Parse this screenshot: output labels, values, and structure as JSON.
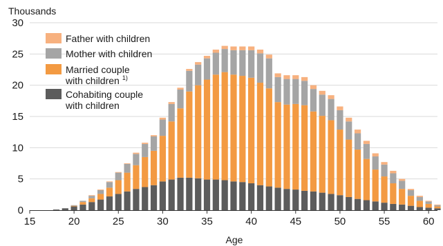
{
  "chart_data": {
    "type": "bar",
    "stacked": true,
    "ylabel": "Thousands",
    "xlabel": "Age",
    "ylim": [
      0,
      30
    ],
    "yticks": [
      0,
      5,
      10,
      15,
      20,
      25,
      30
    ],
    "xlim": [
      15,
      61
    ],
    "xticks": [
      15,
      20,
      25,
      30,
      35,
      40,
      45,
      50,
      55,
      60
    ],
    "grid": true,
    "legend_position": "top-left",
    "x": [
      15,
      16,
      17,
      18,
      19,
      20,
      21,
      22,
      23,
      24,
      25,
      26,
      27,
      28,
      29,
      30,
      31,
      32,
      33,
      34,
      35,
      36,
      37,
      38,
      39,
      40,
      41,
      42,
      43,
      44,
      45,
      46,
      47,
      48,
      49,
      50,
      51,
      52,
      53,
      54,
      55,
      56,
      57,
      58,
      59,
      60,
      61
    ],
    "series": [
      {
        "name": "Cohabiting couple with children",
        "color": "#5c5c5c",
        "values": [
          0,
          0,
          0,
          0.1,
          0.3,
          0.6,
          0.9,
          1.3,
          1.7,
          2.2,
          2.6,
          3.0,
          3.4,
          3.7,
          4.0,
          4.6,
          4.9,
          5.2,
          5.2,
          5.1,
          4.9,
          4.9,
          4.8,
          4.6,
          4.5,
          4.3,
          4.0,
          3.8,
          3.6,
          3.4,
          3.3,
          3.1,
          3.0,
          2.8,
          2.6,
          2.4,
          2.1,
          1.8,
          1.6,
          1.4,
          1.2,
          1.0,
          0.9,
          0.7,
          0.5,
          0.4,
          0.3
        ]
      },
      {
        "name": "Married couple with children",
        "sup": "1)",
        "color": "#f39a42",
        "values": [
          0,
          0,
          0,
          0,
          0,
          0.1,
          0.4,
          0.6,
          0.9,
          1.4,
          2.2,
          3.0,
          3.8,
          4.8,
          5.5,
          7.3,
          9.3,
          11.1,
          13.8,
          14.9,
          16.0,
          16.8,
          17.3,
          17.1,
          17.0,
          16.9,
          16.4,
          15.7,
          13.7,
          13.5,
          13.7,
          13.7,
          12.8,
          12.3,
          11.8,
          10.5,
          9.2,
          7.9,
          6.6,
          5.1,
          4.2,
          3.3,
          2.5,
          1.6,
          1.0,
          0.6,
          0.3
        ]
      },
      {
        "name": "Mother with children",
        "color": "#a5a5a5",
        "values": [
          0,
          0,
          0,
          0,
          0,
          0.1,
          0.2,
          0.4,
          0.6,
          0.9,
          1.2,
          1.4,
          1.8,
          2.1,
          2.3,
          2.6,
          2.8,
          3.0,
          3.3,
          3.3,
          3.4,
          3.5,
          3.7,
          3.9,
          4.1,
          4.4,
          4.7,
          4.8,
          4.0,
          4.1,
          4.0,
          3.9,
          3.6,
          3.4,
          3.4,
          3.1,
          2.9,
          2.6,
          2.4,
          2.1,
          1.9,
          1.6,
          1.3,
          0.9,
          0.6,
          0.4,
          0.2
        ]
      },
      {
        "name": "Father with children",
        "color": "#f7b17f",
        "values": [
          0,
          0,
          0,
          0,
          0,
          0,
          0,
          0.1,
          0.1,
          0.1,
          0.1,
          0.1,
          0.2,
          0.2,
          0.2,
          0.3,
          0.3,
          0.3,
          0.3,
          0.4,
          0.4,
          0.5,
          0.5,
          0.6,
          0.6,
          0.6,
          0.6,
          0.6,
          0.6,
          0.6,
          0.6,
          0.6,
          0.6,
          0.6,
          0.6,
          0.6,
          0.6,
          0.6,
          0.5,
          0.5,
          0.4,
          0.4,
          0.3,
          0.2,
          0.2,
          0.1,
          0.1
        ]
      }
    ],
    "legend_order": [
      "Father with children",
      "Mother with children",
      "Married couple with children",
      "Cohabiting couple with children"
    ],
    "legend_lines": {
      "Father with children": [
        "Father with children"
      ],
      "Mother with children": [
        "Mother with children"
      ],
      "Married couple with children": [
        "Married couple",
        "with children"
      ],
      "Cohabiting couple with children": [
        "Cohabiting couple",
        "with children"
      ]
    },
    "gridline_color": "#d9d9d9",
    "axis_color": "#333333"
  }
}
